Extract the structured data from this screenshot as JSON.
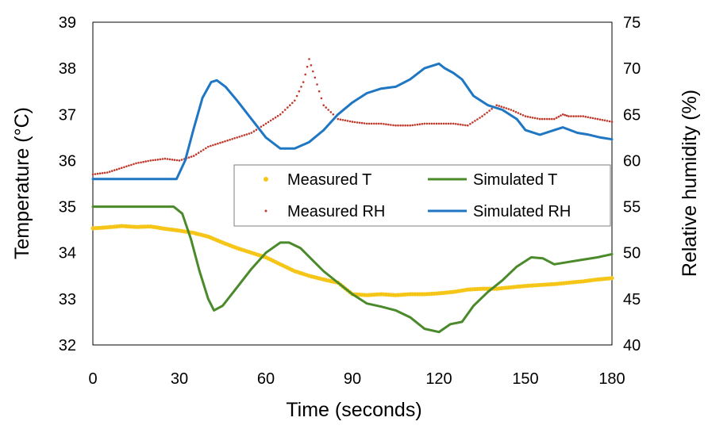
{
  "chart_data": {
    "type": "line",
    "title": "",
    "xlabel": "Time (seconds)",
    "ylabel_left": "Temperature (°C)",
    "ylabel_right": "Relative humidity (%)",
    "xlim": [
      0,
      180
    ],
    "ylim_left": [
      32,
      39
    ],
    "ylim_right": [
      40,
      75
    ],
    "x_ticks": [
      "0",
      "30",
      "60",
      "90",
      "120",
      "150",
      "180"
    ],
    "y_left_ticks": [
      "32",
      "33",
      "34",
      "35",
      "36",
      "37",
      "38",
      "39"
    ],
    "y_right_ticks": [
      "40",
      "45",
      "50",
      "55",
      "60",
      "65",
      "70",
      "75"
    ],
    "grid": false,
    "legend_position": "center-right",
    "series": [
      {
        "name": "Measured T",
        "axis": "left",
        "style": "dots",
        "color": "#f5c518",
        "points": [
          [
            0,
            34.53
          ],
          [
            5,
            34.55
          ],
          [
            10,
            34.58
          ],
          [
            15,
            34.56
          ],
          [
            20,
            34.57
          ],
          [
            25,
            34.52
          ],
          [
            30,
            34.48
          ],
          [
            35,
            34.43
          ],
          [
            40,
            34.35
          ],
          [
            45,
            34.22
          ],
          [
            50,
            34.1
          ],
          [
            55,
            34.0
          ],
          [
            60,
            33.9
          ],
          [
            65,
            33.75
          ],
          [
            70,
            33.6
          ],
          [
            75,
            33.5
          ],
          [
            80,
            33.42
          ],
          [
            85,
            33.35
          ],
          [
            90,
            33.1
          ],
          [
            95,
            33.08
          ],
          [
            100,
            33.1
          ],
          [
            105,
            33.08
          ],
          [
            110,
            33.1
          ],
          [
            115,
            33.1
          ],
          [
            120,
            33.12
          ],
          [
            125,
            33.15
          ],
          [
            130,
            33.2
          ],
          [
            135,
            33.22
          ],
          [
            140,
            33.22
          ],
          [
            145,
            33.25
          ],
          [
            150,
            33.28
          ],
          [
            155,
            33.3
          ],
          [
            160,
            33.32
          ],
          [
            165,
            33.35
          ],
          [
            170,
            33.38
          ],
          [
            175,
            33.42
          ],
          [
            180,
            33.45
          ]
        ]
      },
      {
        "name": "Simulated T",
        "axis": "left",
        "style": "line",
        "color": "#4a8a2a",
        "points": [
          [
            0,
            35.0
          ],
          [
            10,
            35.0
          ],
          [
            20,
            35.0
          ],
          [
            28,
            35.0
          ],
          [
            31,
            34.85
          ],
          [
            34,
            34.3
          ],
          [
            37,
            33.6
          ],
          [
            40,
            33.0
          ],
          [
            42,
            32.75
          ],
          [
            45,
            32.85
          ],
          [
            50,
            33.25
          ],
          [
            55,
            33.65
          ],
          [
            60,
            34.0
          ],
          [
            65,
            34.22
          ],
          [
            68,
            34.22
          ],
          [
            72,
            34.1
          ],
          [
            76,
            33.85
          ],
          [
            80,
            33.6
          ],
          [
            85,
            33.35
          ],
          [
            90,
            33.1
          ],
          [
            95,
            32.9
          ],
          [
            100,
            32.83
          ],
          [
            105,
            32.75
          ],
          [
            110,
            32.6
          ],
          [
            115,
            32.35
          ],
          [
            120,
            32.28
          ],
          [
            124,
            32.45
          ],
          [
            128,
            32.5
          ],
          [
            132,
            32.85
          ],
          [
            137,
            33.15
          ],
          [
            142,
            33.4
          ],
          [
            147,
            33.7
          ],
          [
            152,
            33.9
          ],
          [
            156,
            33.88
          ],
          [
            160,
            33.75
          ],
          [
            165,
            33.8
          ],
          [
            170,
            33.85
          ],
          [
            175,
            33.9
          ],
          [
            180,
            33.97
          ]
        ]
      },
      {
        "name": "Measured RH",
        "axis": "right",
        "style": "dots",
        "color": "#c0392b",
        "points": [
          [
            0,
            58.5
          ],
          [
            5,
            58.7
          ],
          [
            10,
            59.2
          ],
          [
            15,
            59.7
          ],
          [
            20,
            60.0
          ],
          [
            25,
            60.2
          ],
          [
            30,
            60.0
          ],
          [
            35,
            60.5
          ],
          [
            40,
            61.5
          ],
          [
            45,
            62.0
          ],
          [
            50,
            62.5
          ],
          [
            55,
            63.0
          ],
          [
            60,
            64.0
          ],
          [
            65,
            65.0
          ],
          [
            70,
            66.5
          ],
          [
            73,
            68.5
          ],
          [
            75,
            71.0
          ],
          [
            77,
            69.0
          ],
          [
            80,
            66.0
          ],
          [
            85,
            64.5
          ],
          [
            90,
            64.2
          ],
          [
            95,
            64.0
          ],
          [
            100,
            64.0
          ],
          [
            105,
            63.8
          ],
          [
            110,
            63.8
          ],
          [
            115,
            64.0
          ],
          [
            120,
            64.0
          ],
          [
            125,
            64.0
          ],
          [
            130,
            63.8
          ],
          [
            135,
            64.8
          ],
          [
            140,
            66.0
          ],
          [
            145,
            65.5
          ],
          [
            150,
            64.8
          ],
          [
            155,
            64.5
          ],
          [
            160,
            64.5
          ],
          [
            163,
            65.0
          ],
          [
            165,
            64.8
          ],
          [
            170,
            64.8
          ],
          [
            175,
            64.5
          ],
          [
            180,
            64.2
          ]
        ]
      },
      {
        "name": "Simulated RH",
        "axis": "right",
        "style": "line",
        "color": "#1f77c4",
        "points": [
          [
            0,
            58.0
          ],
          [
            10,
            58.0
          ],
          [
            20,
            58.0
          ],
          [
            29,
            58.0
          ],
          [
            32,
            60.0
          ],
          [
            35,
            63.5
          ],
          [
            38,
            66.8
          ],
          [
            41,
            68.5
          ],
          [
            43,
            68.7
          ],
          [
            46,
            68.0
          ],
          [
            50,
            66.5
          ],
          [
            55,
            64.5
          ],
          [
            60,
            62.5
          ],
          [
            65,
            61.3
          ],
          [
            70,
            61.3
          ],
          [
            75,
            62.0
          ],
          [
            80,
            63.3
          ],
          [
            85,
            65.0
          ],
          [
            90,
            66.3
          ],
          [
            95,
            67.3
          ],
          [
            100,
            67.8
          ],
          [
            105,
            68.0
          ],
          [
            110,
            68.8
          ],
          [
            115,
            70.0
          ],
          [
            120,
            70.5
          ],
          [
            122,
            70.0
          ],
          [
            125,
            69.5
          ],
          [
            128,
            68.8
          ],
          [
            132,
            67.0
          ],
          [
            137,
            66.0
          ],
          [
            142,
            65.5
          ],
          [
            147,
            64.5
          ],
          [
            150,
            63.3
          ],
          [
            155,
            62.8
          ],
          [
            160,
            63.3
          ],
          [
            163,
            63.6
          ],
          [
            168,
            63.0
          ],
          [
            172,
            62.8
          ],
          [
            176,
            62.5
          ],
          [
            180,
            62.3
          ]
        ]
      }
    ]
  }
}
